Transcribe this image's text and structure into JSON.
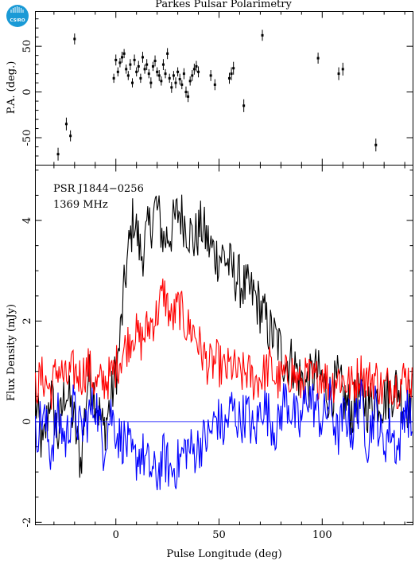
{
  "title": "Parkes Pulsar Polarimetry",
  "logo_text": "CSIRO",
  "chart_data": [
    {
      "type": "scatter",
      "ylabel": "P.A. (deg.)",
      "xlim": [
        -39,
        144
      ],
      "ylim": [
        -80,
        88
      ],
      "yticks": [
        -50,
        0,
        50
      ],
      "xticks": [
        0,
        50,
        100
      ],
      "points": [
        {
          "x": -28,
          "y": -68,
          "err": 7
        },
        {
          "x": -24,
          "y": -35,
          "err": 7
        },
        {
          "x": -22,
          "y": -48,
          "err": 6
        },
        {
          "x": -20,
          "y": 58,
          "err": 6
        },
        {
          "x": -1,
          "y": 15,
          "err": 5
        },
        {
          "x": 0,
          "y": 35,
          "err": 6
        },
        {
          "x": 1,
          "y": 22,
          "err": 5
        },
        {
          "x": 2,
          "y": 32,
          "err": 5
        },
        {
          "x": 3,
          "y": 38,
          "err": 6
        },
        {
          "x": 4,
          "y": 42,
          "err": 5
        },
        {
          "x": 5,
          "y": 25,
          "err": 5
        },
        {
          "x": 6,
          "y": 18,
          "err": 5
        },
        {
          "x": 7,
          "y": 30,
          "err": 6
        },
        {
          "x": 8,
          "y": 10,
          "err": 5
        },
        {
          "x": 9,
          "y": 35,
          "err": 6
        },
        {
          "x": 10,
          "y": 22,
          "err": 5
        },
        {
          "x": 11,
          "y": 28,
          "err": 6
        },
        {
          "x": 12,
          "y": 15,
          "err": 5
        },
        {
          "x": 13,
          "y": 38,
          "err": 6
        },
        {
          "x": 14,
          "y": 25,
          "err": 5
        },
        {
          "x": 15,
          "y": 30,
          "err": 6
        },
        {
          "x": 16,
          "y": 20,
          "err": 5
        },
        {
          "x": 17,
          "y": 10,
          "err": 6
        },
        {
          "x": 18,
          "y": 28,
          "err": 5
        },
        {
          "x": 19,
          "y": 34,
          "err": 6
        },
        {
          "x": 20,
          "y": 22,
          "err": 5
        },
        {
          "x": 21,
          "y": 18,
          "err": 6
        },
        {
          "x": 22,
          "y": 12,
          "err": 5
        },
        {
          "x": 23,
          "y": 30,
          "err": 6
        },
        {
          "x": 24,
          "y": 20,
          "err": 5
        },
        {
          "x": 25,
          "y": 42,
          "err": 6
        },
        {
          "x": 26,
          "y": 15,
          "err": 5
        },
        {
          "x": 27,
          "y": 5,
          "err": 6
        },
        {
          "x": 28,
          "y": 18,
          "err": 5
        },
        {
          "x": 29,
          "y": 10,
          "err": 6
        },
        {
          "x": 30,
          "y": 22,
          "err": 5
        },
        {
          "x": 31,
          "y": 14,
          "err": 6
        },
        {
          "x": 32,
          "y": 8,
          "err": 5
        },
        {
          "x": 33,
          "y": 20,
          "err": 6
        },
        {
          "x": 34,
          "y": 0,
          "err": 6
        },
        {
          "x": 35,
          "y": -5,
          "err": 6
        },
        {
          "x": 36,
          "y": 12,
          "err": 5
        },
        {
          "x": 37,
          "y": 18,
          "err": 6
        },
        {
          "x": 38,
          "y": 25,
          "err": 6
        },
        {
          "x": 39,
          "y": 28,
          "err": 6
        },
        {
          "x": 40,
          "y": 22,
          "err": 6
        },
        {
          "x": 46,
          "y": 18,
          "err": 6
        },
        {
          "x": 48,
          "y": 8,
          "err": 6
        },
        {
          "x": 55,
          "y": 15,
          "err": 6
        },
        {
          "x": 56,
          "y": 20,
          "err": 7
        },
        {
          "x": 57,
          "y": 26,
          "err": 7
        },
        {
          "x": 62,
          "y": -15,
          "err": 7
        },
        {
          "x": 71,
          "y": 62,
          "err": 6
        },
        {
          "x": 98,
          "y": 37,
          "err": 6
        },
        {
          "x": 108,
          "y": 20,
          "err": 7
        },
        {
          "x": 110,
          "y": 25,
          "err": 7
        },
        {
          "x": 126,
          "y": -58,
          "err": 7
        }
      ]
    },
    {
      "type": "line",
      "ylabel": "Flux Density (mJy)",
      "xlabel": "Pulse Longitude (deg)",
      "xlim": [
        -39,
        144
      ],
      "ylim": [
        -2.05,
        5.1
      ],
      "yticks": [
        -2,
        0,
        2,
        4
      ],
      "xticks": [
        0,
        50,
        100
      ],
      "annotations": [
        "PSR J1844−0256",
        "1369 MHz"
      ],
      "series": [
        {
          "color": "#000000",
          "x_start": -39,
          "x_step": 3.66,
          "values": [
            0.4,
            -0.6,
            0.6,
            -0.3,
            0.7,
            0.1,
            -0.8,
            0.9,
            0.5,
            -0.2,
            0.4,
            1.3,
            3.0,
            4.1,
            3.3,
            3.8,
            4.3,
            3.6,
            3.8,
            4.2,
            3.9,
            3.6,
            3.9,
            3.5,
            3.3,
            3.3,
            3.0,
            2.8,
            2.6,
            2.5,
            2.2,
            1.8,
            1.6,
            1.2,
            1.2,
            0.9,
            0.7,
            1.0,
            0.8,
            0.5,
            0.8,
            0.4,
            0.2,
            0.6,
            0.3,
            0.5,
            0.4,
            0.6,
            0.7,
            0.3,
            0.5
          ]
        },
        {
          "color": "#ff0000",
          "x_start": -39,
          "x_step": 3.66,
          "values": [
            0.7,
            0.9,
            0.6,
            1.1,
            0.8,
            1.0,
            0.9,
            1.1,
            0.7,
            0.8,
            0.9,
            1.2,
            1.5,
            1.8,
            1.6,
            1.9,
            2.1,
            2.6,
            2.0,
            2.3,
            1.9,
            1.8,
            1.4,
            1.1,
            1.2,
            1.0,
            1.1,
            0.9,
            1.0,
            0.8,
            0.9,
            1.1,
            0.8,
            0.9,
            1.0,
            0.7,
            0.9,
            0.8,
            1.0,
            0.7,
            0.9,
            0.8,
            0.7,
            1.0,
            0.8,
            0.9,
            0.6,
            0.8,
            0.7,
            0.9,
            0.8
          ]
        },
        {
          "color": "#0000ff",
          "x_start": -39,
          "x_step": 3.66,
          "values": [
            -0.3,
            0.2,
            -0.6,
            0.1,
            -0.4,
            0.3,
            -0.2,
            0.1,
            0.4,
            -0.5,
            0.2,
            -0.3,
            -0.4,
            -0.8,
            -0.6,
            -0.9,
            -1.1,
            -0.7,
            -1.0,
            -0.8,
            -0.5,
            -0.6,
            -0.4,
            -0.3,
            0.1,
            -0.2,
            0.3,
            0.0,
            0.2,
            -0.3,
            0.4,
            0.1,
            -0.2,
            0.5,
            0.2,
            -0.1,
            0.6,
            0.3,
            0.0,
            0.4,
            -0.3,
            0.2,
            -0.2,
            0.5,
            -0.4,
            0.3,
            -0.5,
            -0.1,
            -0.6,
            0.4,
            -0.2
          ]
        }
      ]
    }
  ]
}
